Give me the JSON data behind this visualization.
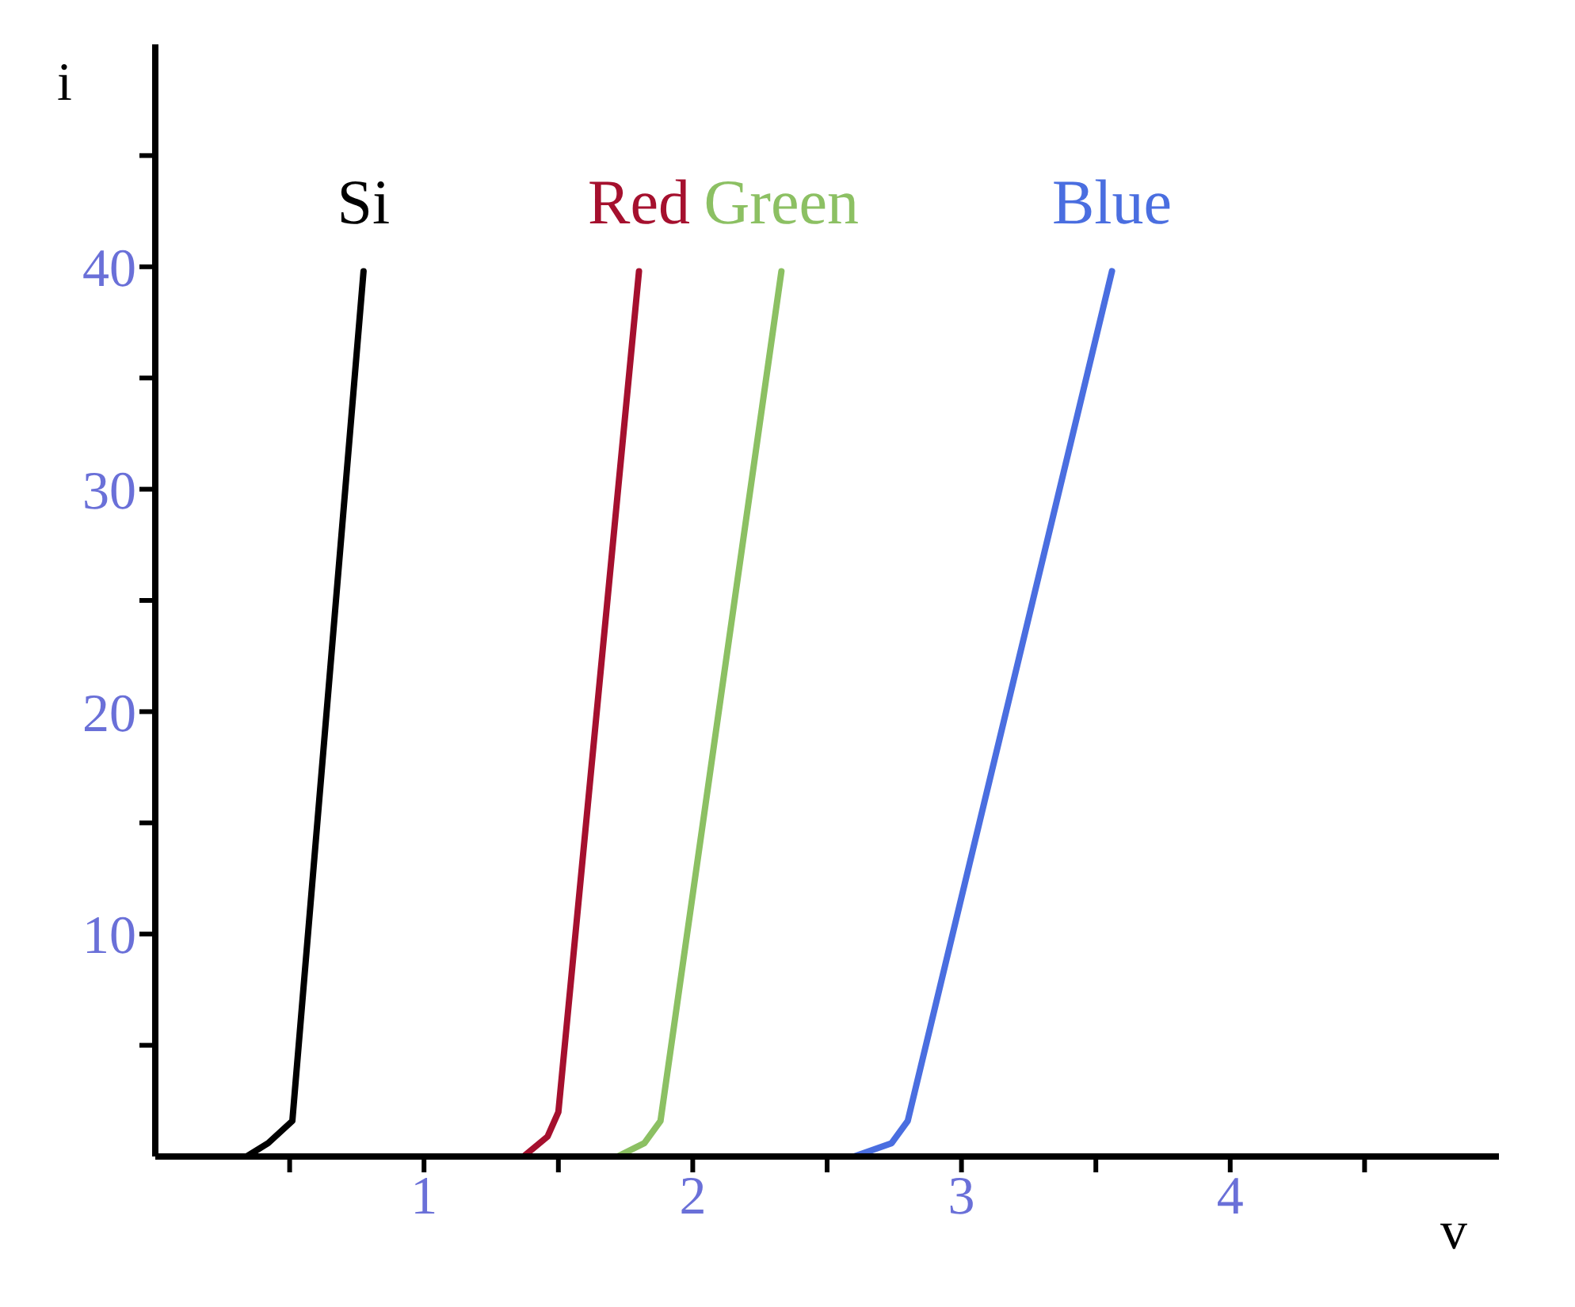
{
  "chart_data": {
    "type": "line",
    "xlabel": "v",
    "ylabel": "i",
    "xlim": [
      0,
      5
    ],
    "ylim": [
      0,
      50
    ],
    "xticks": [
      {
        "value": 0.5,
        "label": null
      },
      1,
      {
        "value": 1.5,
        "label": null
      },
      2,
      {
        "value": 2.5,
        "label": null
      },
      3,
      {
        "value": 3.5,
        "label": null
      },
      4,
      {
        "value": 4.5,
        "label": null
      }
    ],
    "yticks": [
      {
        "value": 5,
        "label": null
      },
      10,
      {
        "value": 15,
        "label": null
      },
      20,
      {
        "value": 25,
        "label": null
      },
      30,
      {
        "value": 35,
        "label": null
      },
      40,
      {
        "value": 45,
        "label": null
      }
    ],
    "grid": false,
    "legend": false,
    "marker": "none",
    "line_style": "solid",
    "series": [
      {
        "name": "Si",
        "color": "#000000",
        "x": [
          0,
          0.34,
          0.42,
          0.51,
          0.775
        ],
        "values": [
          0,
          0,
          0.6,
          1.6,
          39.8
        ]
      },
      {
        "name": "Red",
        "color": "#a5102e",
        "x": [
          1.18,
          1.37,
          1.46,
          1.5,
          1.8
        ],
        "values": [
          0,
          0,
          0.9,
          2,
          39.8
        ]
      },
      {
        "name": "Green",
        "color": "#8cc063",
        "x": [
          1.43,
          1.72,
          1.82,
          1.88,
          2.33
        ],
        "values": [
          0,
          0,
          0.6,
          1.6,
          39.8
        ]
      },
      {
        "name": "Blue",
        "color": "#4a6ee0",
        "x": [
          2.2,
          2.6,
          2.74,
          2.8,
          3.56
        ],
        "values": [
          0,
          0,
          0.6,
          1.6,
          39.8
        ]
      }
    ]
  }
}
